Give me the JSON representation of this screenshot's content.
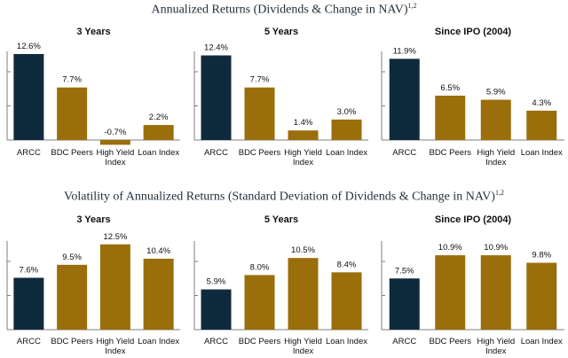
{
  "sections": [
    {
      "title": "Annualized Returns (Dividends & Change in NAV)",
      "sup": "1,2"
    },
    {
      "title": "Volatility of Annualized Returns (Standard Deviation of Dividends & Change in NAV)",
      "sup": "1,2"
    }
  ],
  "colors": {
    "ARCC": "#0f2a3c",
    "peer": "#9a6e0b",
    "axis": "#7f7f7f"
  },
  "chart_data": [
    {
      "type": "bar",
      "title": "3 Years",
      "categories": [
        "ARCC",
        "BDC Peers",
        "High Yield Index",
        "Loan Index"
      ],
      "values": [
        12.6,
        7.7,
        -0.7,
        2.2
      ],
      "labels": [
        "12.6%",
        "7.7%",
        "-0.7%",
        "2.2%"
      ],
      "ylim": [
        0,
        13
      ],
      "yticks": [
        0,
        5,
        10
      ]
    },
    {
      "type": "bar",
      "title": "5 Years",
      "categories": [
        "ARCC",
        "BDC Peers",
        "High Yield Index",
        "Loan Index"
      ],
      "values": [
        12.4,
        7.7,
        1.4,
        3.0
      ],
      "labels": [
        "12.4%",
        "7.7%",
        "1.4%",
        "3.0%"
      ],
      "ylim": [
        0,
        13
      ],
      "yticks": [
        0,
        5,
        10
      ]
    },
    {
      "type": "bar",
      "title": "Since IPO (2004)",
      "categories": [
        "ARCC",
        "BDC Peers",
        "High Yield Index",
        "Loan Index"
      ],
      "values": [
        11.9,
        6.5,
        5.9,
        4.3
      ],
      "labels": [
        "11.9%",
        "6.5%",
        "5.9%",
        "4.3%"
      ],
      "ylim": [
        0,
        13
      ],
      "yticks": [
        0,
        5,
        10
      ]
    },
    {
      "type": "bar",
      "title": "3 Years",
      "categories": [
        "ARCC",
        "BDC Peers",
        "High Yield Index",
        "Loan Index"
      ],
      "values": [
        7.6,
        9.5,
        12.5,
        10.4
      ],
      "labels": [
        "7.6%",
        "9.5%",
        "12.5%",
        "10.4%"
      ],
      "ylim": [
        0,
        13
      ],
      "yticks": [
        0,
        5,
        10
      ]
    },
    {
      "type": "bar",
      "title": "5 Years",
      "categories": [
        "ARCC",
        "BDC Peers",
        "High Yield Index",
        "Loan Index"
      ],
      "values": [
        5.9,
        8.0,
        10.5,
        8.4
      ],
      "labels": [
        "5.9%",
        "8.0%",
        "10.5%",
        "8.4%"
      ],
      "ylim": [
        0,
        13
      ],
      "yticks": [
        0,
        5,
        10
      ]
    },
    {
      "type": "bar",
      "title": "Since IPO (2004)",
      "categories": [
        "ARCC",
        "BDC Peers",
        "High Yield Index",
        "Loan Index"
      ],
      "values": [
        7.5,
        10.9,
        10.9,
        9.8
      ],
      "labels": [
        "7.5%",
        "10.9%",
        "10.9%",
        "9.8%"
      ],
      "ylim": [
        0,
        13
      ],
      "yticks": [
        0,
        5,
        10
      ]
    }
  ]
}
